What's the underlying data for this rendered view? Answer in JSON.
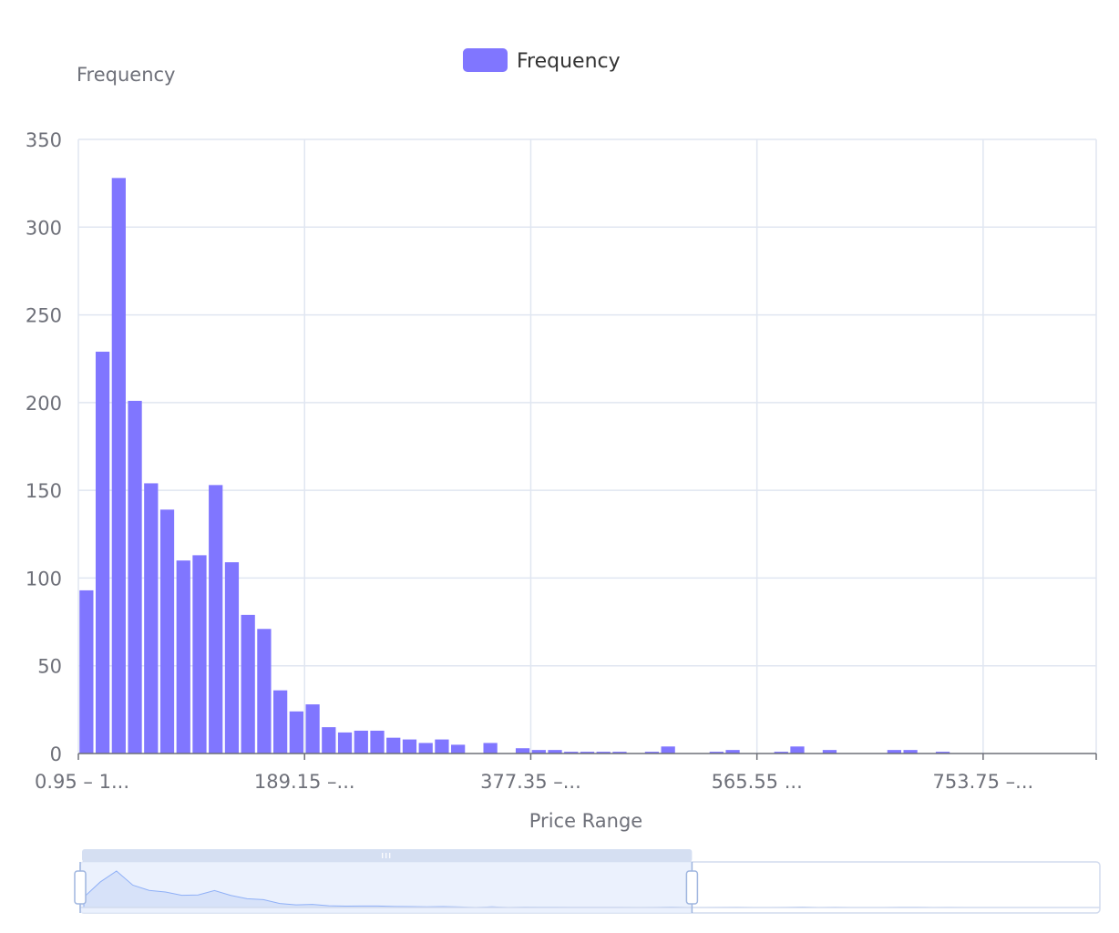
{
  "chart_data": {
    "type": "bar",
    "legend": {
      "label": "Frequency",
      "color": "#8076ff",
      "placement": "top-center"
    },
    "ylabel": "Frequency",
    "xlabel": "Price Range",
    "ylim": [
      0,
      350
    ],
    "y_ticks": [
      0,
      50,
      100,
      150,
      200,
      250,
      300,
      350
    ],
    "x_tick_labels": [
      "0.95 – 1...",
      "189.15 –...",
      "377.35 –...",
      "565.55 ...",
      "753.75 –..."
    ],
    "grid": true,
    "bar_color": "#8076ff",
    "bin_width": 13.44,
    "values": [
      93,
      229,
      328,
      201,
      154,
      139,
      110,
      113,
      153,
      109,
      79,
      71,
      36,
      24,
      28,
      15,
      12,
      13,
      13,
      9,
      8,
      6,
      8,
      5,
      0,
      6,
      0,
      3,
      2,
      2,
      1,
      1,
      1,
      1,
      0,
      1,
      4,
      0,
      0,
      1,
      2,
      0,
      0,
      1,
      4,
      0,
      2,
      0,
      0,
      0,
      2,
      2,
      0,
      1,
      0,
      0,
      0,
      0,
      0,
      0,
      0,
      0,
      0
    ],
    "datazoom": {
      "start_fraction": 0,
      "end_fraction": 0.6,
      "handle_color": "#d5dff2",
      "fill_color": "#e6eefc",
      "line_color": "#8fb0f7"
    }
  }
}
